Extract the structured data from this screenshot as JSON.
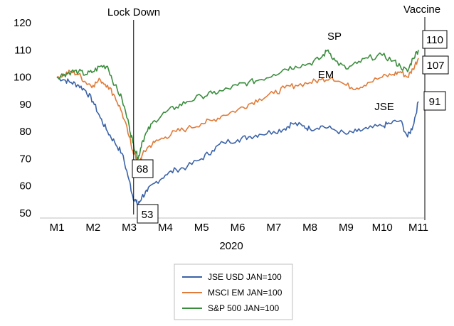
{
  "chart_data": {
    "type": "line",
    "xlabel": "2020",
    "ylabel": "",
    "ylim": [
      50,
      120
    ],
    "yticks": [
      50,
      60,
      70,
      80,
      90,
      100,
      110,
      120
    ],
    "x_categories": [
      "M1",
      "M2",
      "M3",
      "M4",
      "M5",
      "M6",
      "M7",
      "M8",
      "M9",
      "M10",
      "M11"
    ],
    "grid": false,
    "legend_position": "bottom",
    "series": [
      {
        "name": "JSE USD JAN=100",
        "color": "#3a62a7",
        "x": [
          1.0,
          1.2,
          1.4,
          1.6,
          1.8,
          2.0,
          2.2,
          2.4,
          2.6,
          2.8,
          3.0,
          3.1,
          3.2,
          3.25,
          3.35,
          3.5,
          3.7,
          4.0,
          4.3,
          4.6,
          5.0,
          5.3,
          5.6,
          6.0,
          6.3,
          6.6,
          7.0,
          7.3,
          7.5,
          7.8,
          8.0,
          8.3,
          8.6,
          9.0,
          9.3,
          9.6,
          10.0,
          10.2,
          10.5,
          10.7,
          10.85,
          11.0
        ],
        "values": [
          100,
          99,
          98,
          97,
          95,
          91,
          85,
          80,
          76,
          72,
          62,
          56,
          54,
          53,
          56,
          58,
          61,
          64,
          66,
          67,
          70,
          73,
          76,
          77,
          78,
          79,
          80,
          81,
          83,
          82,
          81,
          82,
          81,
          79,
          80,
          81,
          82,
          83,
          84,
          78,
          82,
          91
        ]
      },
      {
        "name": "MSCI EM JAN=100",
        "color": "#e07b39",
        "x": [
          1.0,
          1.2,
          1.4,
          1.6,
          1.8,
          2.0,
          2.2,
          2.4,
          2.6,
          2.8,
          3.0,
          3.1,
          3.2,
          3.25,
          3.35,
          3.5,
          3.7,
          4.0,
          4.3,
          4.6,
          5.0,
          5.3,
          5.6,
          6.0,
          6.3,
          6.6,
          7.0,
          7.3,
          7.6,
          8.0,
          8.3,
          8.6,
          9.0,
          9.3,
          9.6,
          10.0,
          10.3,
          10.5,
          10.7,
          10.85,
          11.0
        ],
        "values": [
          100,
          101,
          102,
          101,
          98,
          97,
          99,
          97,
          93,
          87,
          78,
          73,
          70,
          68,
          71,
          74,
          76,
          78,
          80,
          81,
          83,
          84,
          86,
          88,
          90,
          92,
          94,
          96,
          97,
          98,
          99,
          100,
          97,
          96,
          98,
          100,
          101,
          102,
          100,
          103,
          107
        ]
      },
      {
        "name": "S&P 500 JAN=100",
        "color": "#3a8d3d",
        "x": [
          1.0,
          1.2,
          1.4,
          1.6,
          1.8,
          2.0,
          2.2,
          2.4,
          2.6,
          2.8,
          3.0,
          3.1,
          3.2,
          3.25,
          3.35,
          3.5,
          3.7,
          4.0,
          4.3,
          4.6,
          5.0,
          5.3,
          5.6,
          6.0,
          6.3,
          6.6,
          7.0,
          7.3,
          7.6,
          8.0,
          8.3,
          8.5,
          8.7,
          9.0,
          9.3,
          9.6,
          10.0,
          10.3,
          10.5,
          10.7,
          10.85,
          11.0
        ],
        "values": [
          100,
          101,
          102,
          102,
          101,
          102,
          104,
          104,
          97,
          92,
          82,
          76,
          72,
          70,
          76,
          80,
          84,
          87,
          89,
          91,
          93,
          94,
          95,
          97,
          98,
          99,
          101,
          103,
          104,
          105,
          107,
          110,
          106,
          103,
          105,
          107,
          108,
          106,
          104,
          102,
          107,
          110
        ]
      }
    ],
    "annotations": [
      {
        "text": "Lock Down",
        "x": 3.2
      },
      {
        "text": "Vaccine",
        "x": 11.0
      }
    ],
    "series_labels": [
      "SP",
      "EM",
      "JSE"
    ],
    "value_labels": [
      "110",
      "107",
      "91",
      "68",
      "53"
    ]
  }
}
